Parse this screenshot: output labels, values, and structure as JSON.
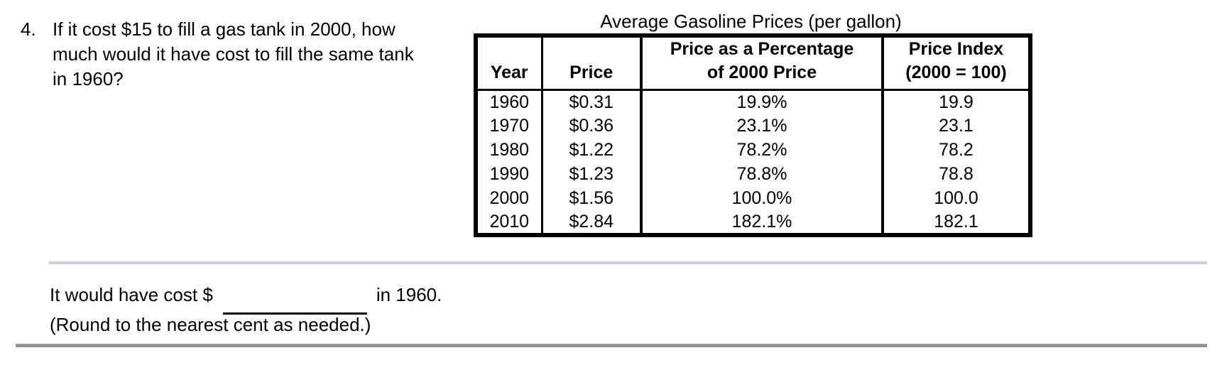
{
  "question": {
    "number": "4.",
    "lines": [
      "If it cost $15 to fill a gas tank in 2000, how",
      "much would it have cost to fill the same tank",
      "in 1960?"
    ]
  },
  "table": {
    "title": "Average Gasoline Prices (per gallon)",
    "headers": {
      "year": "Year",
      "price": "Price",
      "pct_line1": "Price as a Percentage",
      "pct_line2": "of 2000 Price",
      "index_line1": "Price Index",
      "index_line2": "(2000 = 100)"
    },
    "rows": [
      {
        "year": "1960",
        "price": "$0.31",
        "pct": "19.9%",
        "index": "19.9"
      },
      {
        "year": "1970",
        "price": "$0.36",
        "pct": "23.1%",
        "index": "23.1"
      },
      {
        "year": "1980",
        "price": "$1.22",
        "pct": "78.2%",
        "index": "78.2"
      },
      {
        "year": "1990",
        "price": "$1.23",
        "pct": "78.8%",
        "index": "78.8"
      },
      {
        "year": "2000",
        "price": "$1.56",
        "pct": "100.0%",
        "index": "100.0"
      },
      {
        "year": "2010",
        "price": "$2.84",
        "pct": "182.1%",
        "index": "182.1"
      }
    ]
  },
  "answer": {
    "prefix": "It would have cost $",
    "blank_value": "",
    "suffix": "in 1960.",
    "note": "(Round to the nearest cent as needed.)"
  },
  "chart_data": {
    "type": "table",
    "title": "Average Gasoline Prices (per gallon)",
    "columns": [
      "Year",
      "Price",
      "Price as a Percentage of 2000 Price",
      "Price Index (2000 = 100)"
    ],
    "rows": [
      [
        "1960",
        "$0.31",
        "19.9%",
        "19.9"
      ],
      [
        "1970",
        "$0.36",
        "23.1%",
        "23.1"
      ],
      [
        "1980",
        "$1.22",
        "78.2%",
        "78.2"
      ],
      [
        "1990",
        "$1.23",
        "78.8%",
        "78.8"
      ],
      [
        "2000",
        "$1.56",
        "100.0%",
        "100.0"
      ],
      [
        "2010",
        "$2.84",
        "182.1%",
        "182.1"
      ]
    ]
  },
  "colors": {
    "text": "#000000",
    "table_border": "#000000",
    "divider_light": "#cbcfda",
    "divider_dark": "#8f8f8f",
    "background": "#ffffff"
  }
}
